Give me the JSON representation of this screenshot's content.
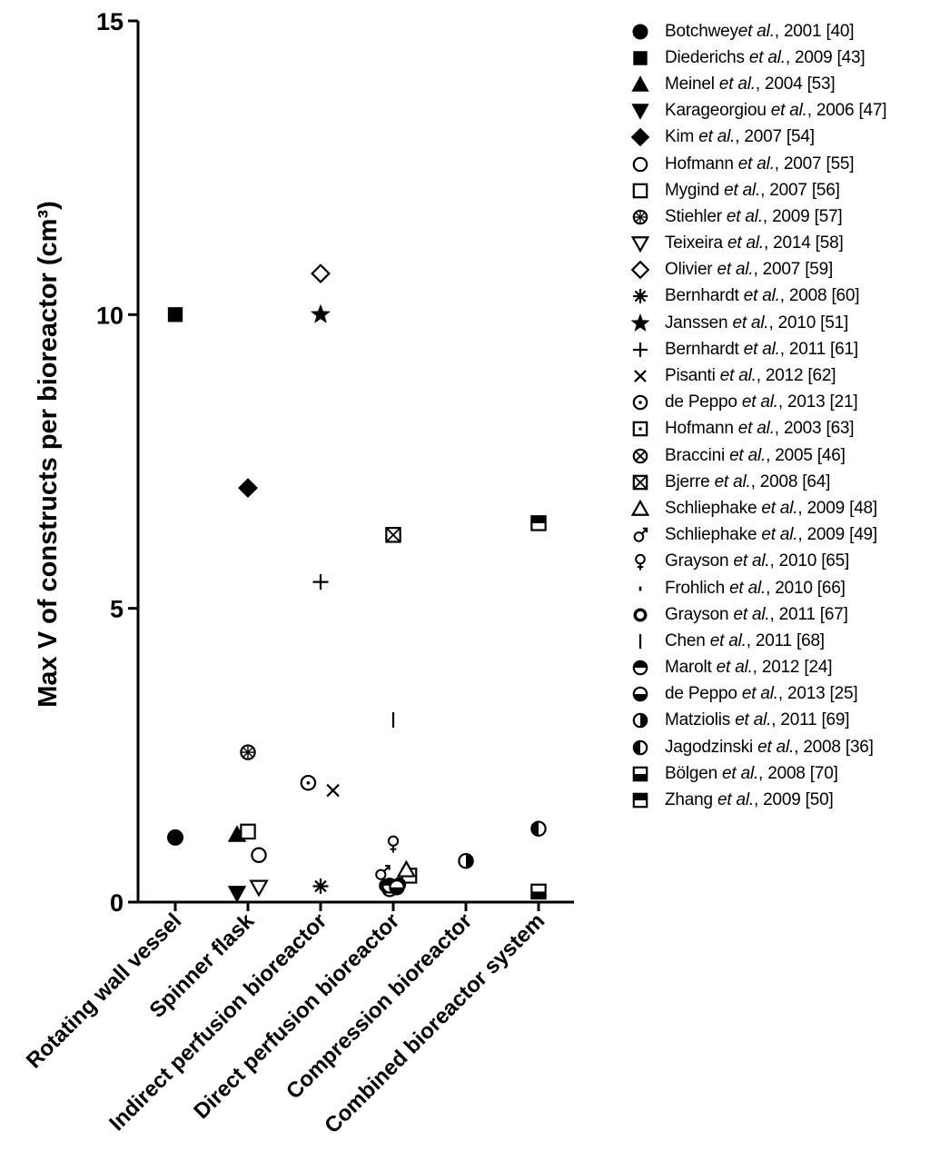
{
  "chart_data": {
    "type": "scatter",
    "title": "",
    "xlabel": "",
    "ylabel": "Max V of constructs per bioreactor (cm³)",
    "ylim": [
      0,
      15
    ],
    "yticks": [
      "0",
      "5",
      "10",
      "15"
    ],
    "grid": false,
    "legend_position": "right",
    "categories": [
      "Rotating wall vessel",
      "Spinner flask",
      "Indirect perfusion bioreactor",
      "Direct perfusion bioreactor",
      "Compression bioreactor",
      "Combined bioreactor system"
    ],
    "series": [
      {
        "name": "Botchwey et al., 2001 [40]",
        "author": "Botchwey",
        "etal": "et al.",
        "rest": ", 2001 [40]",
        "marker": "circle-filled",
        "points": [
          {
            "cat": 0,
            "dx": 0,
            "y": 1.1
          }
        ]
      },
      {
        "name": "Diederichs et al., 2009 [43]",
        "author": "Diederichs ",
        "etal": "et al.",
        "rest": ", 2009 [43]",
        "marker": "square-filled",
        "points": [
          {
            "cat": 0,
            "dx": 0,
            "y": 10.0
          }
        ]
      },
      {
        "name": "Meinel et al., 2004 [53]",
        "author": "Meinel ",
        "etal": "et al.",
        "rest": ", 2004 [53]",
        "marker": "triangle-up-filled",
        "points": [
          {
            "cat": 1,
            "dx": -0.15,
            "y": 1.15
          }
        ]
      },
      {
        "name": "Karageorgiou et al., 2006 [47]",
        "author": "Karageorgiou ",
        "etal": "et al.",
        "rest": ", 2006 [47]",
        "marker": "triangle-down-filled",
        "points": [
          {
            "cat": 1,
            "dx": -0.15,
            "y": 0.15
          }
        ]
      },
      {
        "name": "Kim et al., 2007 [54]",
        "author": "Kim ",
        "etal": "et al.",
        "rest": ", 2007 [54]",
        "marker": "diamond-filled",
        "points": [
          {
            "cat": 1,
            "dx": 0,
            "y": 7.05
          }
        ]
      },
      {
        "name": "Hofmann et al., 2007 [55]",
        "author": "Hofmann ",
        "etal": "et al.",
        "rest": ", 2007 [55]",
        "marker": "circle-open",
        "points": [
          {
            "cat": 1,
            "dx": 0.15,
            "y": 0.8
          }
        ]
      },
      {
        "name": "Mygind et al., 2007 [56]",
        "author": "Mygind ",
        "etal": "et al.",
        "rest": ", 2007 [56]",
        "marker": "square-open",
        "points": [
          {
            "cat": 1,
            "dx": 0,
            "y": 1.2
          }
        ]
      },
      {
        "name": "Stiehler et al., 2009 [57]",
        "author": "Stiehler ",
        "etal": "et al.",
        "rest": ", 2009 [57]",
        "marker": "circle-hatched",
        "points": [
          {
            "cat": 1,
            "dx": 0,
            "y": 2.55
          }
        ]
      },
      {
        "name": "Teixeira et al., 2014 [58]",
        "author": "Teixeira ",
        "etal": "et al.",
        "rest": ", 2014 [58]",
        "marker": "triangle-down-open",
        "points": [
          {
            "cat": 1,
            "dx": 0.15,
            "y": 0.25
          }
        ]
      },
      {
        "name": "Olivier et al., 2007 [59]",
        "author": "Olivier ",
        "etal": "et al.",
        "rest": ", 2007 [59]",
        "marker": "diamond-open",
        "points": [
          {
            "cat": 2,
            "dx": 0,
            "y": 10.7
          }
        ]
      },
      {
        "name": "Bernhardt et al., 2008 [60]",
        "author": "Bernhardt ",
        "etal": "et al.",
        "rest": ", 2008 [60]",
        "marker": "asterisk",
        "points": [
          {
            "cat": 2,
            "dx": 0,
            "y": 0.27
          }
        ]
      },
      {
        "name": "Janssen et al., 2010 [51]",
        "author": "Janssen ",
        "etal": "et al.",
        "rest": ", 2010 [51]",
        "marker": "star-filled",
        "points": [
          {
            "cat": 2,
            "dx": 0,
            "y": 10.0
          }
        ]
      },
      {
        "name": "Bernhardt et al., 2011 [61]",
        "author": "Bernhardt ",
        "etal": "et al.",
        "rest": ", 2011 [61]",
        "marker": "plus",
        "points": [
          {
            "cat": 2,
            "dx": 0,
            "y": 5.45
          }
        ]
      },
      {
        "name": "Pisanti et al., 2012 [62]",
        "author": "Pisanti ",
        "etal": "et al.",
        "rest": ", 2012 [62]",
        "marker": "cross",
        "points": [
          {
            "cat": 2,
            "dx": 0.17,
            "y": 1.9
          }
        ]
      },
      {
        "name": "de Peppo et al., 2013 [21]",
        "author": "de Peppo ",
        "etal": "et al.",
        "rest": ", 2013 [21]",
        "marker": "circle-dot",
        "points": [
          {
            "cat": 2,
            "dx": -0.17,
            "y": 2.03
          }
        ]
      },
      {
        "name": "Hofmann et al., 2003 [63]",
        "author": "Hofmann ",
        "etal": "et al.",
        "rest": ", 2003 [63]",
        "marker": "square-dot",
        "points": [
          {
            "cat": 3,
            "dx": 0.22,
            "y": 0.45
          }
        ]
      },
      {
        "name": "Braccini et al., 2005 [46]",
        "author": "Braccini ",
        "etal": "et al.",
        "rest": ", 2005 [46]",
        "marker": "circle-x",
        "points": [
          {
            "cat": 3,
            "dx": -0.05,
            "y": 0.22
          }
        ]
      },
      {
        "name": "Bjerre et al., 2008 [64]",
        "author": "Bjerre ",
        "etal": "et al.",
        "rest": ", 2008 [64]",
        "marker": "square-x",
        "points": [
          {
            "cat": 3,
            "dx": 0,
            "y": 6.25
          }
        ]
      },
      {
        "name": "Schliephake et al., 2009 [48]",
        "author": "Schliephake ",
        "etal": "et al.",
        "rest": ", 2009 [48]",
        "marker": "triangle-up-open",
        "points": [
          {
            "cat": 3,
            "dx": 0.18,
            "y": 0.55
          }
        ]
      },
      {
        "name": "Schliephake et al., 2009 [49]",
        "author": "Schliephake ",
        "etal": "et al.",
        "rest": ", 2009 [49]",
        "marker": "male",
        "points": [
          {
            "cat": 3,
            "dx": -0.15,
            "y": 0.5
          }
        ]
      },
      {
        "name": "Grayson et al., 2010 [65]",
        "author": "Grayson ",
        "etal": "et al.",
        "rest": ", 2010 [65]",
        "marker": "female",
        "points": [
          {
            "cat": 3,
            "dx": 0,
            "y": 1.0
          }
        ]
      },
      {
        "name": "Frohlich et al., 2010 [66]",
        "author": "Frohlich ",
        "etal": "et al.",
        "rest": ", 2010 [66]",
        "marker": "dash-short",
        "points": [
          {
            "cat": 3,
            "dx": 0.05,
            "y": 0.35
          }
        ]
      },
      {
        "name": "Grayson et al., 2011 [67]",
        "author": "Grayson ",
        "etal": "et al.",
        "rest": ", 2011 [67]",
        "marker": "circle-bold",
        "points": [
          {
            "cat": 3,
            "dx": -0.1,
            "y": 0.28
          },
          {
            "cat": 3,
            "dx": 0.08,
            "y": 0.3
          }
        ]
      },
      {
        "name": "Chen et al., 2011 [68]",
        "author": "Chen ",
        "etal": "et al.",
        "rest": ", 2011 [68]",
        "marker": "line-vertical",
        "points": [
          {
            "cat": 3,
            "dx": 0,
            "y": 3.1
          }
        ]
      },
      {
        "name": "Marolt et al., 2012 [24]",
        "author": "Marolt ",
        "etal": "et al.",
        "rest": ", 2012 [24]",
        "marker": "circle-top-half",
        "points": [
          {
            "cat": 3,
            "dx": -0.05,
            "y": 0.28
          }
        ]
      },
      {
        "name": "de Peppo et al., 2013 [25]",
        "author": "de Peppo ",
        "etal": "et al.",
        "rest": ", 2013 [25]",
        "marker": "circle-bottom-half",
        "points": [
          {
            "cat": 3,
            "dx": 0.05,
            "y": 0.25
          }
        ]
      },
      {
        "name": "Matziolis et al., 2011 [69]",
        "author": "Matziolis ",
        "etal": "et al.",
        "rest": ", 2011 [69]",
        "marker": "circle-right-half",
        "points": [
          {
            "cat": 4,
            "dx": 0,
            "y": 0.7
          }
        ]
      },
      {
        "name": "Jagodzinski et al., 2008 [36]",
        "author": "Jagodzinski ",
        "etal": "et al.",
        "rest": ", 2008 [36]",
        "marker": "circle-left-half",
        "points": [
          {
            "cat": 5,
            "dx": 0,
            "y": 1.25
          }
        ]
      },
      {
        "name": "Bölgen et al., 2008 [70]",
        "author": "Bölgen ",
        "etal": "et al.",
        "rest": ", 2008 [70]",
        "marker": "square-bottom-half",
        "points": [
          {
            "cat": 5,
            "dx": 0,
            "y": 0.18
          }
        ]
      },
      {
        "name": "Zhang et al., 2009 [50]",
        "author": "Zhang ",
        "etal": "et al.",
        "rest": ", 2009 [50]",
        "marker": "square-top-half",
        "points": [
          {
            "cat": 5,
            "dx": 0,
            "y": 6.45
          }
        ]
      }
    ]
  }
}
